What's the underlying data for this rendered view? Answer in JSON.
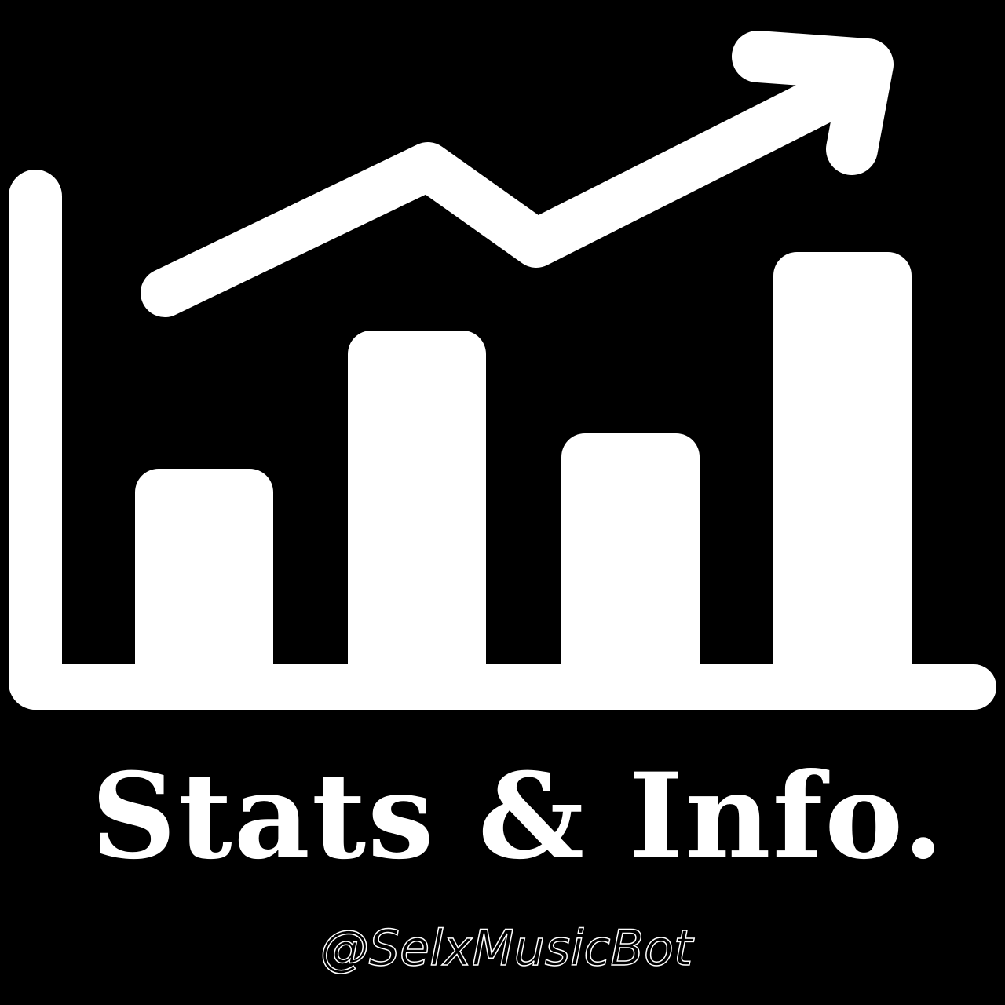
{
  "colors": {
    "background": "#000000",
    "foreground": "#ffffff"
  },
  "icon": "bar-chart-trend-up-icon",
  "title": "Stats & Info.",
  "handle": "@SelxMusicBot"
}
